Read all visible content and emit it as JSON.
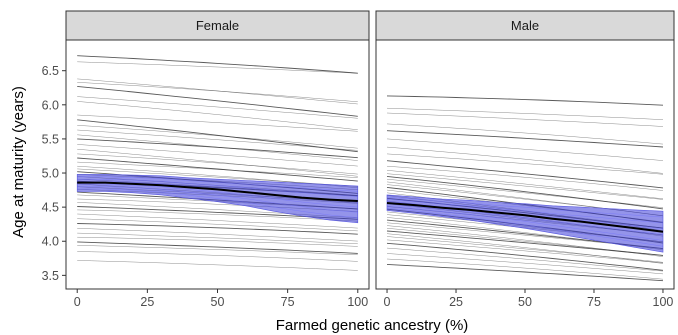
{
  "chart_data": {
    "type": "line",
    "xlabel": "Farmed genetic ancestry (%)",
    "ylabel": "Age at maturity (years)",
    "xlim": [
      -4,
      104
    ],
    "ylim": [
      3.3,
      6.95
    ],
    "x_ticks": [
      0,
      25,
      50,
      75,
      100
    ],
    "y_ticks": [
      3.5,
      4.0,
      4.5,
      5.0,
      5.5,
      6.0,
      6.5
    ],
    "grid": false,
    "colors": {
      "band": "#5858e0",
      "band_fill": "#3c3cd8",
      "mean_line": "#000000",
      "individual_lines": "#303030",
      "strip_background": "#d9d9d9"
    },
    "panels": [
      {
        "label": "Female",
        "mean": {
          "x": [
            0,
            10,
            20,
            30,
            40,
            50,
            60,
            70,
            80,
            90,
            100
          ],
          "y": [
            4.86,
            4.86,
            4.84,
            4.82,
            4.79,
            4.76,
            4.72,
            4.68,
            4.64,
            4.61,
            4.59
          ]
        },
        "band_lower": [
          4.73,
          4.73,
          4.71,
          4.68,
          4.63,
          4.58,
          4.52,
          4.44,
          4.37,
          4.31,
          4.27
        ],
        "band_upper": [
          4.98,
          4.98,
          4.97,
          4.96,
          4.93,
          4.91,
          4.89,
          4.87,
          4.85,
          4.83,
          4.81
        ],
        "individual_start": [
          6.72,
          6.63,
          6.38,
          6.33,
          6.27,
          6.12,
          6.05,
          5.85,
          5.78,
          5.7,
          5.63,
          5.56,
          5.5,
          5.42,
          5.35,
          5.28,
          5.22,
          5.16,
          5.1,
          5.06,
          5.02,
          4.98,
          4.95,
          4.91,
          4.88,
          4.84,
          4.8,
          4.76,
          4.72,
          4.68,
          4.62,
          4.57,
          4.51,
          4.46,
          4.4,
          4.33,
          4.26,
          4.19,
          4.12,
          4.06,
          3.99,
          3.94,
          3.85,
          3.72
        ],
        "individual_slope": [
          -0.0022,
          -0.0015,
          -0.0035,
          -0.0025,
          -0.0042,
          -0.003,
          -0.0038,
          -0.0022,
          -0.0045,
          -0.003,
          -0.0028,
          -0.0036,
          -0.0024,
          -0.003,
          -0.0038,
          -0.0026,
          -0.0032,
          -0.0021,
          -0.0028,
          -0.0024,
          -0.003,
          -0.0019,
          -0.0026,
          -0.0022,
          -0.0018,
          -0.0026,
          -0.0021,
          -0.0017,
          -0.0023,
          -0.0019,
          -0.0015,
          -0.0021,
          -0.0017,
          -0.0013,
          -0.0019,
          -0.0016,
          -0.0012,
          -0.0017,
          -0.0014,
          -0.001,
          -0.0015,
          -0.0012,
          -0.0011,
          -0.0013
        ]
      },
      {
        "label": "Male",
        "mean": {
          "x": [
            0,
            10,
            20,
            30,
            40,
            50,
            60,
            70,
            80,
            90,
            100
          ],
          "y": [
            4.56,
            4.53,
            4.49,
            4.46,
            4.42,
            4.38,
            4.33,
            4.29,
            4.24,
            4.19,
            4.14
          ]
        },
        "band_lower": [
          4.45,
          4.41,
          4.36,
          4.31,
          4.25,
          4.19,
          4.12,
          4.05,
          3.98,
          3.91,
          3.84
        ],
        "band_upper": [
          4.68,
          4.65,
          4.62,
          4.6,
          4.57,
          4.55,
          4.52,
          4.5,
          4.48,
          4.46,
          4.44
        ],
        "individual_start": [
          6.13,
          5.95,
          5.88,
          5.72,
          5.62,
          5.5,
          5.38,
          5.28,
          5.18,
          5.1,
          5.04,
          4.99,
          4.95,
          4.91,
          4.87,
          4.83,
          4.79,
          4.75,
          4.71,
          4.67,
          4.63,
          4.59,
          4.55,
          4.51,
          4.47,
          4.43,
          4.39,
          4.35,
          4.31,
          4.27,
          4.23,
          4.19,
          4.15,
          4.11,
          4.07,
          4.02,
          3.97,
          3.9,
          3.82,
          3.74,
          3.66
        ],
        "individual_slope": [
          -0.001,
          -0.0015,
          -0.0018,
          -0.0026,
          -0.0022,
          -0.003,
          -0.0035,
          -0.0028,
          -0.0038,
          -0.0032,
          -0.004,
          -0.0036,
          -0.0044,
          -0.004,
          -0.0048,
          -0.0042,
          -0.005,
          -0.0045,
          -0.0052,
          -0.0046,
          -0.0042,
          -0.0048,
          -0.0044,
          -0.004,
          -0.0046,
          -0.0042,
          -0.0038,
          -0.0044,
          -0.004,
          -0.0036,
          -0.0042,
          -0.0038,
          -0.0034,
          -0.004,
          -0.0036,
          -0.0032,
          -0.0036,
          -0.0032,
          -0.0028,
          -0.0026,
          -0.0022
        ]
      }
    ]
  }
}
